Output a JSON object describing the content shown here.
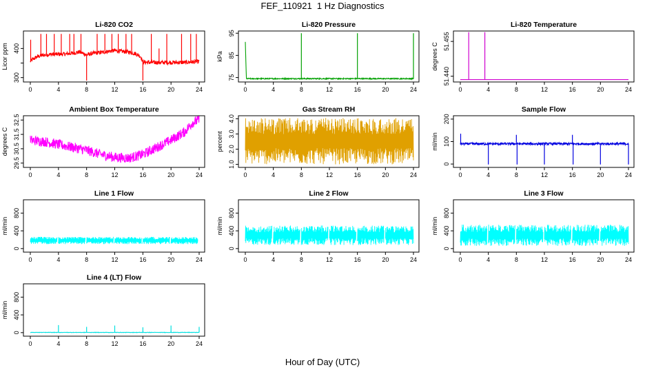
{
  "figure": {
    "title": "FEF_110921  1 Hz Diagnostics",
    "xlabel": "Hour of Day (UTC)"
  },
  "chart_data": [
    {
      "id": "co2",
      "type": "line",
      "title": "Li-820 CO2",
      "ylabel": "Licor ppm",
      "color": "#ff0000",
      "xlim": [
        0,
        24
      ],
      "ylim": [
        285,
        460
      ],
      "yticks": [
        300,
        350,
        400
      ],
      "yticklabels": [
        "300",
        "",
        "400"
      ],
      "xticks": [
        0,
        4,
        8,
        12,
        16,
        20,
        24
      ],
      "series": [
        {
          "x": [
            0,
            0.3,
            1,
            2,
            3,
            4,
            5,
            6,
            7,
            8,
            9,
            10,
            11,
            12,
            13,
            14,
            15,
            15.7,
            16,
            17,
            18,
            20,
            22,
            24
          ],
          "y": [
            355,
            362,
            372,
            378,
            380,
            380,
            381,
            384,
            388,
            378,
            384,
            386,
            390,
            393,
            390,
            388,
            382,
            372,
            353,
            352,
            352,
            352,
            352,
            355
          ],
          "noise": 7,
          "spikes": [
            [
              0.05,
              430
            ],
            [
              1.5,
              450
            ],
            [
              2.3,
              450
            ],
            [
              3.4,
              450
            ],
            [
              4.4,
              450
            ],
            [
              5.6,
              450
            ],
            [
              6.2,
              450
            ],
            [
              7.2,
              450
            ],
            [
              8.0,
              290
            ],
            [
              9.5,
              450
            ],
            [
              10.6,
              450
            ],
            [
              11.6,
              450
            ],
            [
              12.5,
              450
            ],
            [
              13.6,
              450
            ],
            [
              14.4,
              450
            ],
            [
              16.0,
              290
            ],
            [
              17.2,
              450
            ],
            [
              18.3,
              400
            ],
            [
              19.4,
              450
            ],
            [
              21.5,
              450
            ],
            [
              22.8,
              450
            ],
            [
              23.6,
              450
            ]
          ]
        }
      ]
    },
    {
      "id": "pressure",
      "type": "line",
      "title": "Li-820 Pressure",
      "ylabel": "kPa",
      "color": "#00a000",
      "xlim": [
        0,
        24
      ],
      "ylim": [
        73,
        96
      ],
      "yticks": [
        75,
        85,
        95
      ],
      "yticklabels": [
        "75",
        "85",
        "95"
      ],
      "xticks": [
        0,
        4,
        8,
        12,
        16,
        20,
        24
      ],
      "series": [
        {
          "x": [
            0,
            0.15,
            24
          ],
          "y": [
            91,
            74.5,
            74.5
          ],
          "noise": 0.25,
          "spikes": [
            [
              8.0,
              95
            ],
            [
              16.0,
              95
            ],
            [
              24.0,
              95
            ]
          ]
        }
      ]
    },
    {
      "id": "li820-temp",
      "type": "line",
      "title": "Li-820 Temperature",
      "ylabel": "degrees C",
      "color": "#d000d0",
      "xlim": [
        0,
        24
      ],
      "ylim": [
        51.4375,
        51.4595
      ],
      "yticks": [
        51.44,
        51.455
      ],
      "yticklabels": [
        "51.440",
        "51.455"
      ],
      "xticks": [
        0,
        4,
        8,
        12,
        16,
        20,
        24
      ],
      "series": [
        {
          "x": [
            0,
            24
          ],
          "y": [
            51.4385,
            51.4385
          ],
          "noise": 0,
          "spikes": [
            [
              1.2,
              51.459
            ],
            [
              3.5,
              51.459
            ]
          ]
        }
      ]
    },
    {
      "id": "box-temp",
      "type": "line",
      "title": "Ambient Box Temperature",
      "ylabel": "degrees C",
      "color": "#ff00ff",
      "xlim": [
        0,
        24
      ],
      "ylim": [
        29.2,
        32.8
      ],
      "yticks": [
        29.5,
        30.5,
        31.5,
        32.5
      ],
      "yticklabels": [
        "29.5",
        "30.5",
        "31.5",
        "32.5"
      ],
      "xticks": [
        0,
        4,
        8,
        12,
        16,
        20,
        24
      ],
      "series": [
        {
          "x": [
            0,
            2,
            4,
            6,
            8,
            10,
            12,
            14,
            16,
            18,
            20,
            22,
            23,
            24
          ],
          "y": [
            31.1,
            31.0,
            30.8,
            30.6,
            30.4,
            30.1,
            29.9,
            29.85,
            30.1,
            30.6,
            31.1,
            31.7,
            32.3,
            32.5
          ],
          "noise": 0.35,
          "spikes": []
        }
      ]
    },
    {
      "id": "rh",
      "type": "line",
      "title": "Gas Stream RH",
      "ylabel": "percent",
      "color": "#e0a000",
      "xlim": [
        0,
        24
      ],
      "ylim": [
        0.8,
        4.2
      ],
      "yticks": [
        1.0,
        2.0,
        3.0,
        4.0
      ],
      "yticklabels": [
        "1.0",
        "2.0",
        "3.0",
        "4.0"
      ],
      "xticks": [
        0,
        4,
        8,
        12,
        16,
        20,
        24
      ],
      "series": [
        {
          "x": [
            0,
            24
          ],
          "y": [
            2.5,
            2.5
          ],
          "noise": 1.5,
          "band": [
            1.0,
            4.05
          ],
          "spikes": []
        }
      ]
    },
    {
      "id": "sample-flow",
      "type": "line",
      "title": "Sample Flow",
      "ylabel": "ml/min",
      "color": "#0000e0",
      "xlim": [
        0,
        24
      ],
      "ylim": [
        -15,
        215
      ],
      "yticks": [
        0,
        100,
        200
      ],
      "yticklabels": [
        "0",
        "100",
        "200"
      ],
      "xticks": [
        0,
        4,
        8,
        12,
        16,
        20,
        24
      ],
      "series": [
        {
          "x": [
            0,
            24
          ],
          "y": [
            90,
            90
          ],
          "noise": 5,
          "spikes": [
            [
              0.05,
              135
            ],
            [
              4.0,
              -2
            ],
            [
              8.0,
              130
            ],
            [
              8.1,
              -2
            ],
            [
              12.0,
              -2
            ],
            [
              16.0,
              130
            ],
            [
              16.1,
              -2
            ],
            [
              20.0,
              -2
            ],
            [
              24.0,
              -2
            ]
          ]
        }
      ]
    },
    {
      "id": "line1",
      "type": "line",
      "title": "Line 1 Flow",
      "ylabel": "ml/min",
      "color": "#00ffff",
      "xlim": [
        0,
        24
      ],
      "ylim": [
        -80,
        1100
      ],
      "yticks": [
        0,
        400,
        800
      ],
      "yticklabels": [
        "0",
        "400",
        "800"
      ],
      "xticks": [
        0,
        4,
        8,
        12,
        16,
        20,
        24
      ],
      "series": [
        {
          "x": [
            0,
            24
          ],
          "y": [
            175,
            175
          ],
          "noise": 70,
          "band": [
            100,
            265
          ],
          "gaps": [
            3.9,
            7.9,
            11.9,
            15.9,
            19.9,
            23.9
          ]
        }
      ]
    },
    {
      "id": "line2",
      "type": "line",
      "title": "Line 2 Flow",
      "ylabel": "ml/min",
      "color": "#00ffff",
      "xlim": [
        0,
        24
      ],
      "ylim": [
        -80,
        1100
      ],
      "yticks": [
        0,
        400,
        800
      ],
      "yticklabels": [
        "0",
        "400",
        "800"
      ],
      "xticks": [
        0,
        4,
        8,
        12,
        16,
        20,
        24
      ],
      "series": [
        {
          "x": [
            0,
            24
          ],
          "y": [
            300,
            300
          ],
          "noise": 180,
          "band": [
            80,
            520
          ],
          "gaps": [
            3.9,
            7.9,
            11.9,
            15.9,
            19.9
          ]
        }
      ]
    },
    {
      "id": "line3",
      "type": "line",
      "title": "Line 3 Flow",
      "ylabel": "ml/min",
      "color": "#00ffff",
      "xlim": [
        0,
        24
      ],
      "ylim": [
        -80,
        1100
      ],
      "yticks": [
        0,
        400,
        800
      ],
      "yticklabels": [
        "0",
        "400",
        "800"
      ],
      "xticks": [
        0,
        4,
        8,
        12,
        16,
        20,
        24
      ],
      "series": [
        {
          "x": [
            0,
            24
          ],
          "y": [
            300,
            300
          ],
          "noise": 200,
          "band": [
            60,
            540
          ],
          "gaps": [
            3.9,
            7.9,
            11.9,
            15.9,
            19.9
          ]
        }
      ]
    },
    {
      "id": "line4",
      "type": "line",
      "title": "Line 4 (LT) Flow",
      "ylabel": "ml/min",
      "color": "#00e0e0",
      "xlim": [
        0,
        24
      ],
      "ylim": [
        -80,
        1100
      ],
      "yticks": [
        0,
        400,
        800
      ],
      "yticklabels": [
        "0",
        "400",
        "800"
      ],
      "xticks": [
        0,
        4,
        8,
        12,
        16,
        20,
        24
      ],
      "series": [
        {
          "x": [
            0,
            24
          ],
          "y": [
            5,
            5
          ],
          "noise": 4,
          "spikes": [
            [
              4.0,
              170
            ],
            [
              8.0,
              130
            ],
            [
              12.0,
              160
            ],
            [
              16.0,
              120
            ],
            [
              20.0,
              160
            ],
            [
              24.0,
              130
            ]
          ]
        }
      ]
    }
  ]
}
